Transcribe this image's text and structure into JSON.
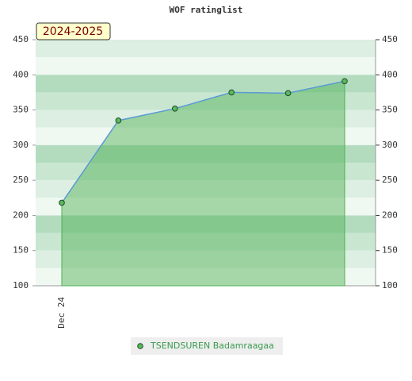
{
  "chart_data": {
    "type": "line",
    "title": "WOF ratinglist",
    "season_label": "2024-2025",
    "categories": [
      "Dec 24",
      null,
      null,
      null,
      null,
      null
    ],
    "series": [
      {
        "name": "TSENDSUREN Badamraagaa",
        "color": "#5b9bd5",
        "fill": "#4caf50",
        "marker": "#5cb85c",
        "legend_color": "#3a9b4f",
        "values": [
          218,
          335,
          352,
          375,
          374,
          391
        ]
      }
    ],
    "ylim": [
      100,
      450
    ],
    "yticks": [
      100,
      150,
      200,
      250,
      300,
      350,
      400,
      450
    ],
    "y2lim": [
      100,
      450
    ],
    "y2ticks": [
      100,
      150,
      200,
      250,
      300,
      350,
      400,
      450
    ]
  }
}
